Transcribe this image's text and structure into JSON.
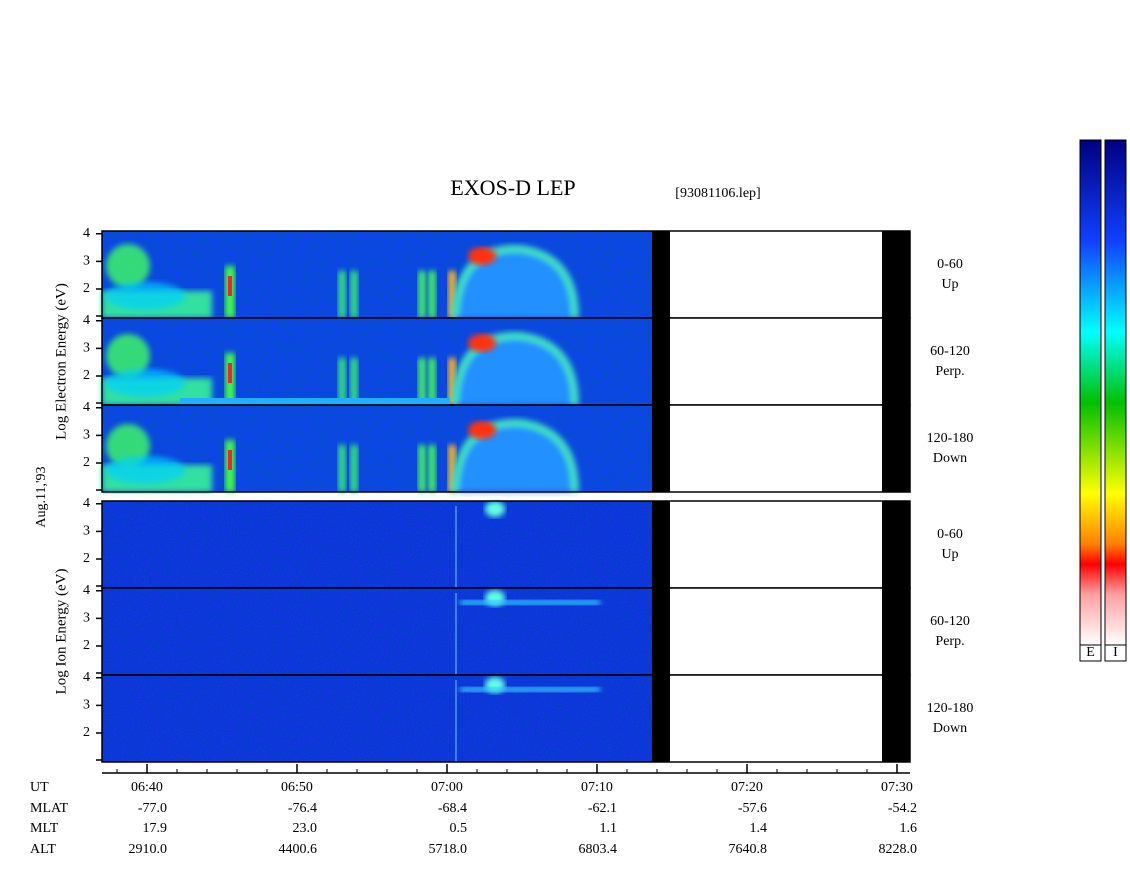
{
  "chart_data": {
    "type": "spectrogram",
    "title": "EXOS-D LEP",
    "subtitle": "[93081106.lep]",
    "date_label": "Aug.11,'93",
    "ylim": [
      0.95,
      4.1
    ],
    "yticks": [
      2,
      3,
      4
    ],
    "groups": [
      {
        "y_label": "Log Electron Energy (eV)",
        "panels": [
          {
            "angle": "0-60",
            "direction": "Up"
          },
          {
            "angle": "60-120",
            "direction": "Perp."
          },
          {
            "angle": "120-180",
            "direction": "Down"
          }
        ]
      },
      {
        "y_label": "Log Ion Energy (eV)",
        "panels": [
          {
            "angle": "0-60",
            "direction": "Up"
          },
          {
            "angle": "60-120",
            "direction": "Perp."
          },
          {
            "angle": "120-180",
            "direction": "Down"
          }
        ]
      }
    ],
    "x_rows": [
      {
        "label": "UT",
        "values": [
          "06:40",
          "06:50",
          "07:00",
          "07:10",
          "07:20",
          "07:30"
        ]
      },
      {
        "label": "MLAT",
        "values": [
          "-77.0",
          "-76.4",
          "-68.4",
          "-62.1",
          "-57.6",
          "-54.2"
        ]
      },
      {
        "label": "MLT",
        "values": [
          "17.9",
          "23.0",
          "0.5",
          "1.1",
          "1.4",
          "1.6"
        ]
      },
      {
        "label": "ALT",
        "values": [
          "2910.0",
          "4400.6",
          "5718.0",
          "6803.4",
          "7640.8",
          "8228.0"
        ]
      }
    ],
    "colorbar_labels": [
      "E",
      "I"
    ]
  }
}
